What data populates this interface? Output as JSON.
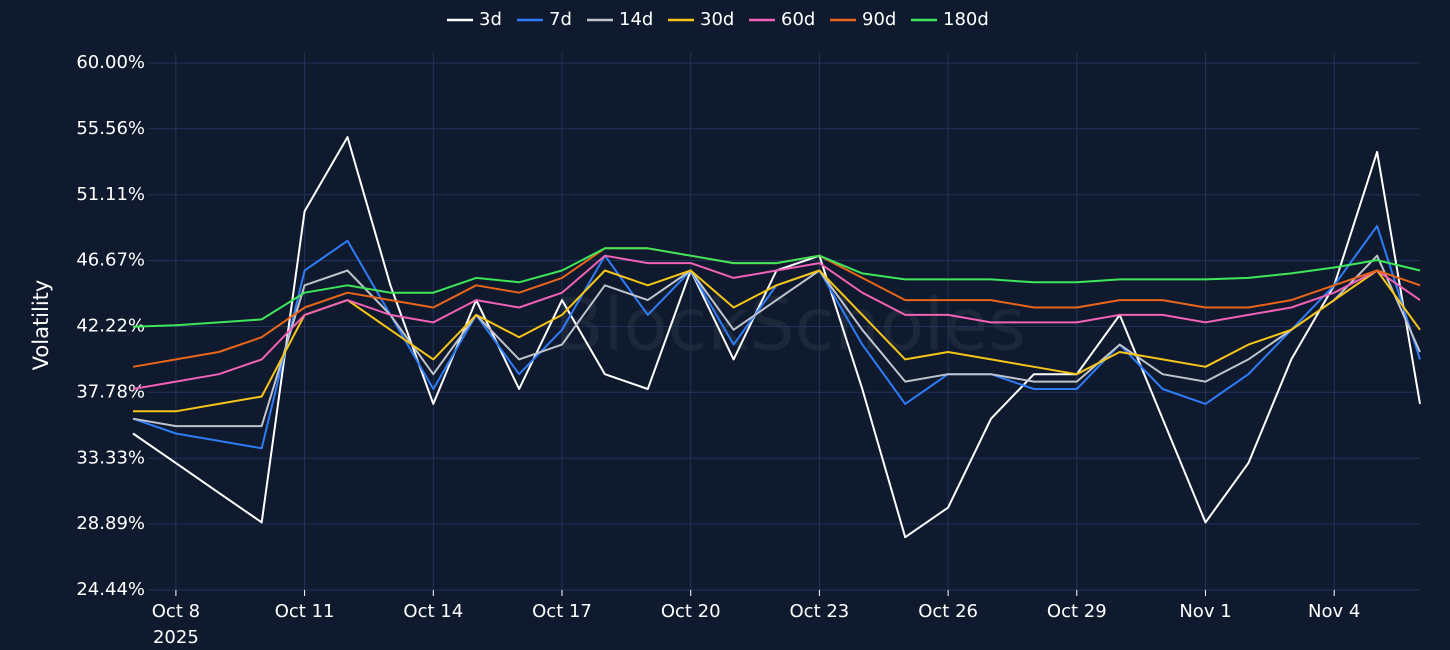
{
  "chart_data": {
    "type": "line",
    "y_label": "Volatility",
    "watermark": "BlockScholes",
    "year_label": "2025",
    "x": [
      "2025-10-07",
      "2025-10-08",
      "2025-10-09",
      "2025-10-10",
      "2025-10-11",
      "2025-10-12",
      "2025-10-13",
      "2025-10-14",
      "2025-10-15",
      "2025-10-16",
      "2025-10-17",
      "2025-10-18",
      "2025-10-19",
      "2025-10-20",
      "2025-10-21",
      "2025-10-22",
      "2025-10-23",
      "2025-10-24",
      "2025-10-25",
      "2025-10-26",
      "2025-10-27",
      "2025-10-28",
      "2025-10-29",
      "2025-10-30",
      "2025-10-31",
      "2025-11-01",
      "2025-11-02",
      "2025-11-03",
      "2025-11-04",
      "2025-11-05",
      "2025-11-06"
    ],
    "xlim": [
      "2025-10-07",
      "2025-11-06"
    ],
    "xticks": [
      {
        "value": "2025-10-08",
        "label": "Oct 8"
      },
      {
        "value": "2025-10-11",
        "label": "Oct 11"
      },
      {
        "value": "2025-10-14",
        "label": "Oct 14"
      },
      {
        "value": "2025-10-17",
        "label": "Oct 17"
      },
      {
        "value": "2025-10-20",
        "label": "Oct 20"
      },
      {
        "value": "2025-10-23",
        "label": "Oct 23"
      },
      {
        "value": "2025-10-26",
        "label": "Oct 26"
      },
      {
        "value": "2025-10-29",
        "label": "Oct 29"
      },
      {
        "value": "2025-11-01",
        "label": "Nov 1"
      },
      {
        "value": "2025-11-04",
        "label": "Nov 4"
      }
    ],
    "ylim": [
      24.44,
      60
    ],
    "yticks": [
      {
        "value": 24.44,
        "label": "24.44%"
      },
      {
        "value": 28.89,
        "label": "28.89%"
      },
      {
        "value": 33.33,
        "label": "33.33%"
      },
      {
        "value": 37.78,
        "label": "37.78%"
      },
      {
        "value": 42.22,
        "label": "42.22%"
      },
      {
        "value": 46.67,
        "label": "46.67%"
      },
      {
        "value": 51.11,
        "label": "51.11%"
      },
      {
        "value": 55.56,
        "label": "55.56%"
      },
      {
        "value": 60,
        "label": "60.00%"
      }
    ],
    "grid": true,
    "legend": "top",
    "series": [
      {
        "name": "3d",
        "color": "#ffffff",
        "values": [
          35,
          33,
          31,
          29,
          50,
          55,
          45,
          37,
          44,
          38,
          44,
          39,
          38,
          46,
          40,
          46,
          47,
          38,
          28,
          30,
          36,
          39,
          39,
          43,
          36,
          29,
          33,
          40,
          45,
          54,
          37
        ]
      },
      {
        "name": "7d",
        "color": "#2f7cf6",
        "values": [
          36,
          35,
          34.5,
          34,
          46,
          48,
          43,
          38,
          43,
          39,
          42,
          47,
          43,
          46,
          41,
          45,
          46,
          41,
          37,
          39,
          39,
          38,
          38,
          41,
          38,
          37,
          39,
          42,
          45,
          49,
          40
        ]
      },
      {
        "name": "14d",
        "color": "#bfc4cc",
        "values": [
          36,
          35.5,
          35.5,
          35.5,
          45,
          46,
          43,
          39,
          43,
          40,
          41,
          45,
          44,
          46,
          42,
          44,
          46,
          42,
          38.5,
          39,
          39,
          38.5,
          38.5,
          41,
          39,
          38.5,
          40,
          42,
          44,
          47,
          40.5
        ]
      },
      {
        "name": "30d",
        "color": "#f5c518",
        "values": [
          36.5,
          36.5,
          37,
          37.5,
          43,
          44,
          42,
          40,
          43,
          41.5,
          43,
          46,
          45,
          46,
          43.5,
          45,
          46,
          43,
          40,
          40.5,
          40,
          39.5,
          39,
          40.5,
          40,
          39.5,
          41,
          42,
          44,
          46,
          42
        ]
      },
      {
        "name": "60d",
        "color": "#f062b5",
        "values": [
          38,
          38.5,
          39,
          40,
          43,
          44,
          43,
          42.5,
          44,
          43.5,
          44.5,
          47,
          46.5,
          46.5,
          45.5,
          46,
          46.5,
          44.5,
          43,
          43,
          42.5,
          42.5,
          42.5,
          43,
          43,
          42.5,
          43,
          43.5,
          44.5,
          46,
          44
        ]
      },
      {
        "name": "90d",
        "color": "#e8651a",
        "values": [
          39.5,
          40,
          40.5,
          41.5,
          43.5,
          44.5,
          44,
          43.5,
          45,
          44.5,
          45.5,
          47.5,
          47.5,
          47,
          46.5,
          46.5,
          47,
          45.5,
          44,
          44,
          44,
          43.5,
          43.5,
          44,
          44,
          43.5,
          43.5,
          44,
          45,
          46,
          45
        ]
      },
      {
        "name": "180d",
        "color": "#3ee65a",
        "values": [
          42.2,
          42.3,
          42.5,
          42.7,
          44.5,
          45,
          44.5,
          44.5,
          45.5,
          45.2,
          46,
          47.5,
          47.5,
          47,
          46.5,
          46.5,
          47,
          45.8,
          45.4,
          45.4,
          45.4,
          45.2,
          45.2,
          45.4,
          45.4,
          45.4,
          45.5,
          45.8,
          46.2,
          46.7,
          46
        ]
      }
    ]
  }
}
